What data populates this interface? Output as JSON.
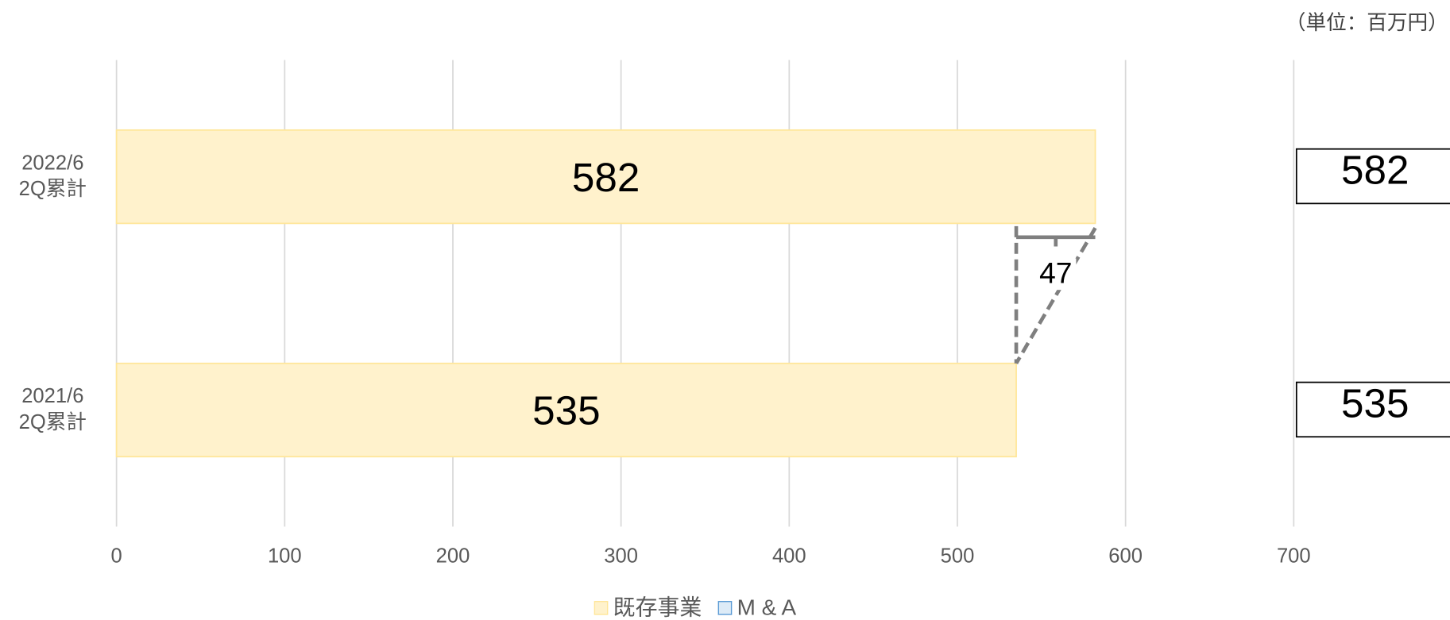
{
  "chart_data": {
    "type": "bar",
    "orientation": "horizontal",
    "unit_note": "（単位：百万円）",
    "categories": [
      [
        "2022/6",
        "2Q累計"
      ],
      [
        "2021/6",
        "2Q累計"
      ]
    ],
    "series": [
      {
        "name": "既存事業",
        "color": "#fff2cc",
        "edge_color": "#ffe699",
        "values": [
          582,
          535
        ]
      },
      {
        "name": "M & A",
        "color": "#ddebf7",
        "edge_color": "#5b9bd5",
        "values": [
          null,
          null
        ]
      }
    ],
    "totals": [
      582,
      535
    ],
    "difference": 47,
    "xlim": [
      0,
      700
    ],
    "xticks": [
      0,
      100,
      200,
      300,
      400,
      500,
      600,
      700
    ],
    "grid": true,
    "legend": "bottom"
  }
}
